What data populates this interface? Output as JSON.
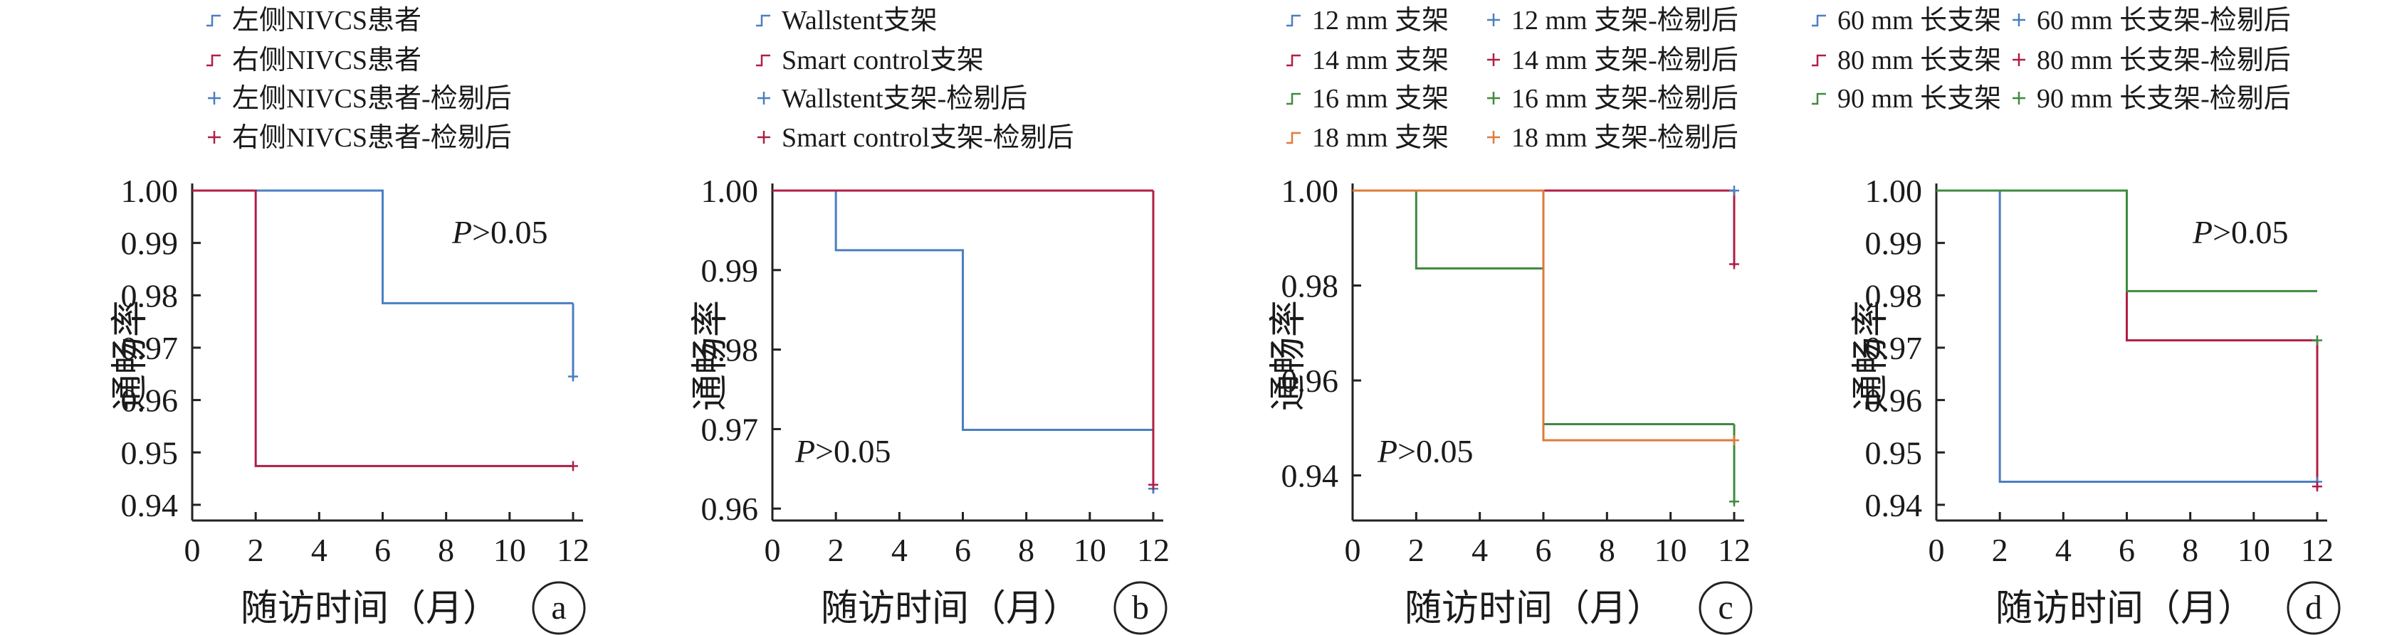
{
  "chart_data": [
    {
      "panel": "a",
      "type": "line",
      "ylabel": "通畅率",
      "xlabel": "随访时间（月）",
      "annotation": "P>0.05",
      "xticks": [
        0,
        2,
        4,
        6,
        8,
        10,
        12
      ],
      "yticks": [
        "1.00",
        "0.99",
        "0.98",
        "0.97",
        "0.96",
        "0.95",
        "0.94"
      ],
      "xlim": [
        0,
        12
      ],
      "ylim": [
        0.937,
        1.0
      ],
      "series": [
        {
          "name": "左侧NIVCS患者",
          "color": "#4a7fc1",
          "steps": [
            [
              0,
              1.0
            ],
            [
              6,
              0.9785
            ],
            [
              12,
              0.9785
            ]
          ],
          "drops": [
            [
              12,
              0.9785,
              0.964
            ]
          ]
        },
        {
          "name": "右侧NIVCS患者",
          "color": "#b01e45",
          "steps": [
            [
              0,
              1.0
            ],
            [
              2,
              0.9474
            ],
            [
              12,
              0.9474
            ]
          ],
          "drops": []
        }
      ],
      "censored": [
        {
          "name": "左侧NIVCS患者-检剔后",
          "color": "#4a7fc1",
          "points": [
            [
              12,
              0.9645
            ]
          ]
        },
        {
          "name": "右侧NIVCS患者-检剔后",
          "color": "#b01e45",
          "points": [
            [
              12,
              0.9474
            ]
          ]
        }
      ]
    },
    {
      "panel": "b",
      "type": "line",
      "ylabel": "通畅率",
      "xlabel": "随访时间（月）",
      "annotation": "P>0.05",
      "xticks": [
        0,
        2,
        4,
        6,
        8,
        10,
        12
      ],
      "yticks": [
        "1.00",
        "0.99",
        "0.98",
        "0.97",
        "0.96"
      ],
      "xlim": [
        0,
        12
      ],
      "ylim": [
        0.9585,
        1.0
      ],
      "series": [
        {
          "name": "Wallstent支架",
          "color": "#4a7fc1",
          "steps": [
            [
              0,
              1.0
            ],
            [
              2,
              0.9925
            ],
            [
              6,
              0.9699
            ],
            [
              12,
              0.9699
            ]
          ],
          "drops": [
            [
              12,
              0.9699,
              0.962
            ]
          ]
        },
        {
          "name": "Smart control支架",
          "color": "#b01e45",
          "steps": [
            [
              0,
              1.0
            ],
            [
              12,
              1.0
            ]
          ],
          "drops": [
            [
              12,
              1.0,
              0.963
            ]
          ]
        }
      ],
      "censored": [
        {
          "name": "Wallstent支架-检剔后",
          "color": "#4a7fc1",
          "points": [
            [
              12,
              0.9625
            ]
          ]
        },
        {
          "name": "Smart control支架-检剔后",
          "color": "#b01e45",
          "points": [
            [
              12,
              0.963
            ]
          ]
        }
      ]
    },
    {
      "panel": "c",
      "type": "line",
      "ylabel": "通畅率",
      "xlabel": "随访时间（月）",
      "annotation": "P>0.05",
      "xticks": [
        0,
        2,
        4,
        6,
        8,
        10,
        12
      ],
      "yticks": [
        "1.00",
        "0.98",
        "0.96",
        "0.94"
      ],
      "xlim": [
        0,
        12
      ],
      "ylim": [
        0.9305,
        1.0
      ],
      "series": [
        {
          "name": "12 mm 支架",
          "color": "#4a7fc1",
          "steps": [
            [
              0,
              1.0
            ],
            [
              12,
              1.0
            ]
          ],
          "drops": []
        },
        {
          "name": "14 mm 支架",
          "color": "#b01e45",
          "steps": [
            [
              0,
              1.0
            ],
            [
              12,
              1.0
            ]
          ],
          "drops": [
            [
              12,
              1.0,
              0.984
            ]
          ]
        },
        {
          "name": "16 mm 支架",
          "color": "#3f8a3f",
          "steps": [
            [
              0,
              1.0
            ],
            [
              2,
              0.9836
            ],
            [
              6,
              0.9508
            ],
            [
              12,
              0.9508
            ]
          ],
          "drops": [
            [
              12,
              0.9508,
              0.934
            ]
          ]
        },
        {
          "name": "18 mm 支架",
          "color": "#e07a3a",
          "steps": [
            [
              0,
              1.0
            ],
            [
              6,
              0.9474
            ],
            [
              12,
              0.9474
            ]
          ],
          "drops": []
        }
      ],
      "censored": [
        {
          "name": "12 mm 支架-检剔后",
          "color": "#4a7fc1",
          "points": [
            [
              12,
              1.0
            ]
          ]
        },
        {
          "name": "14 mm 支架-检剔后",
          "color": "#b01e45",
          "points": [
            [
              12,
              0.9845
            ]
          ]
        },
        {
          "name": "16 mm 支架-检剔后",
          "color": "#3f8a3f",
          "points": [
            [
              12,
              0.9345
            ]
          ]
        },
        {
          "name": "18 mm 支架-检剔后",
          "color": "#e07a3a",
          "points": [
            [
              12,
              0.9474
            ]
          ]
        }
      ]
    },
    {
      "panel": "d",
      "type": "line",
      "ylabel": "通畅率",
      "xlabel": "随访时间（月）",
      "annotation": "P>0.05",
      "xticks": [
        0,
        2,
        4,
        6,
        8,
        10,
        12
      ],
      "yticks": [
        "1.00",
        "0.99",
        "0.98",
        "0.97",
        "0.96",
        "0.95",
        "0.94"
      ],
      "xlim": [
        0,
        12
      ],
      "ylim": [
        0.937,
        1.0
      ],
      "series": [
        {
          "name": "60 mm 长支架",
          "color": "#4a7fc1",
          "steps": [
            [
              0,
              1.0
            ],
            [
              2,
              0.9444
            ],
            [
              12,
              0.9444
            ]
          ],
          "drops": []
        },
        {
          "name": "80 mm 长支架",
          "color": "#b01e45",
          "steps": [
            [
              0,
              1.0
            ],
            [
              6,
              0.9714
            ],
            [
              12,
              0.9714
            ]
          ],
          "drops": [
            [
              12,
              0.9714,
              0.943
            ]
          ]
        },
        {
          "name": "90 mm 长支架",
          "color": "#3f8a3f",
          "steps": [
            [
              0,
              1.0
            ],
            [
              6,
              0.9808
            ],
            [
              12,
              0.9808
            ]
          ],
          "drops": []
        }
      ],
      "censored": [
        {
          "name": "60 mm 长支架-检剔后",
          "color": "#4a7fc1",
          "points": [
            [
              12,
              0.9444
            ]
          ]
        },
        {
          "name": "80 mm 长支架-检剔后",
          "color": "#b01e45",
          "points": [
            [
              12,
              0.9435
            ]
          ]
        },
        {
          "name": "90 mm 长支架-检剔后",
          "color": "#3f8a3f",
          "points": [
            [
              12,
              0.9714
            ]
          ]
        }
      ]
    }
  ]
}
